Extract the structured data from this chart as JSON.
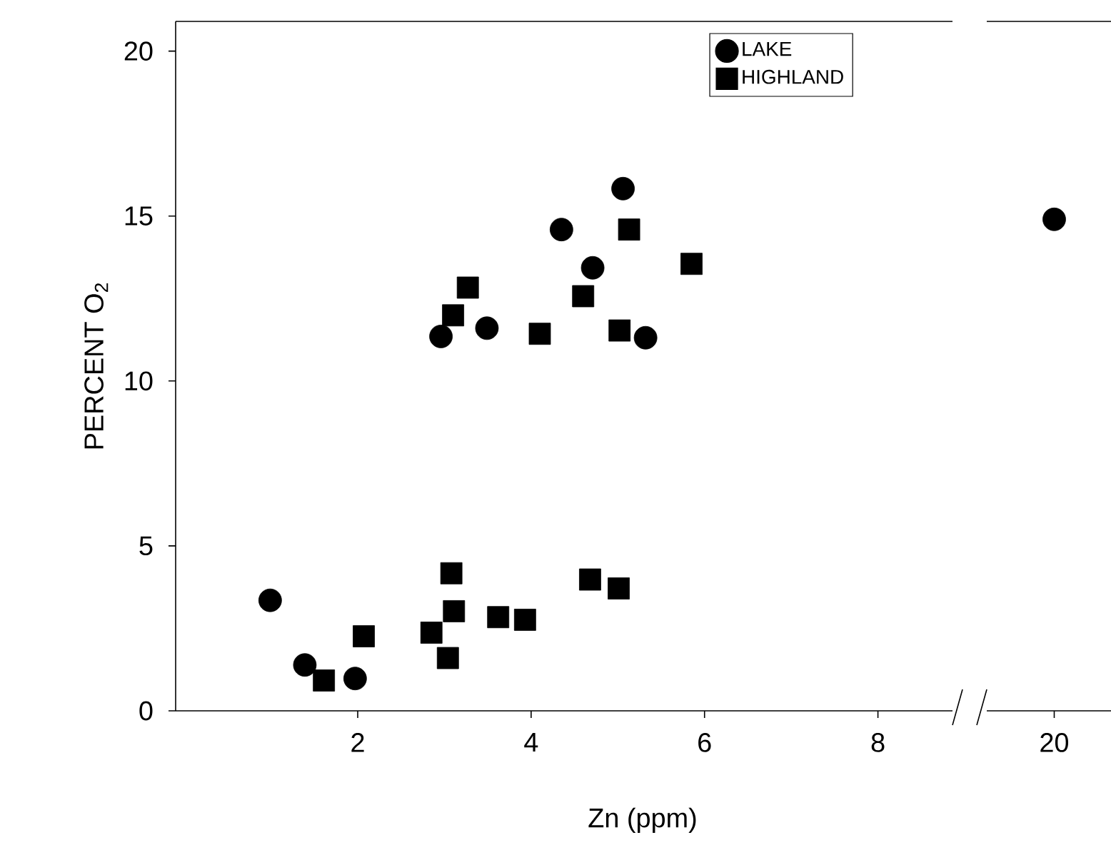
{
  "chart_data": [
    {
      "type": "scatter",
      "xlabel": "Zn (ppm)",
      "ylabel": "PERCENT O$_{2}$",
      "legend": "top right",
      "xlim": [
        -0.1,
        8.86
      ],
      "xticks": [
        2,
        4,
        6,
        8
      ],
      "ylim": [
        0,
        20.9
      ],
      "yticks": [
        0,
        5,
        10,
        15,
        20
      ],
      "series": [
        {
          "name": "LAKE",
          "color": "#000000",
          "marker": "circle",
          "x": [
            5.06,
            4.35,
            4.71,
            2.96,
            3.49,
            5.32,
            0.99,
            1.39,
            1.97
          ],
          "values": [
            15.83,
            14.59,
            13.43,
            11.35,
            11.6,
            11.31,
            3.35,
            1.39,
            0.98
          ]
        },
        {
          "name": "HIGHLAND",
          "color": "#000000",
          "marker": "square",
          "x": [
            5.13,
            5.85,
            3.27,
            3.1,
            4.1,
            4.6,
            5.02,
            1.61,
            2.07,
            3.08,
            3.11,
            2.85,
            3.04,
            3.62,
            3.93,
            4.68,
            5.01
          ],
          "values": [
            14.59,
            13.55,
            12.83,
            11.99,
            11.43,
            12.57,
            11.53,
            0.92,
            2.26,
            4.17,
            3.02,
            2.37,
            1.6,
            2.84,
            2.76,
            3.98,
            3.71
          ]
        }
      ]
    },
    {
      "type": "scatter",
      "categories": [
        "20"
      ],
      "ylim": [
        0,
        20.9
      ],
      "yticks": [
        0,
        5,
        10,
        15,
        20
      ],
      "tick_labels": "x",
      "series": [
        {
          "color": "#000000",
          "marker": "circle",
          "x": [
            "20"
          ],
          "values": [
            14.9
          ]
        }
      ]
    }
  ]
}
